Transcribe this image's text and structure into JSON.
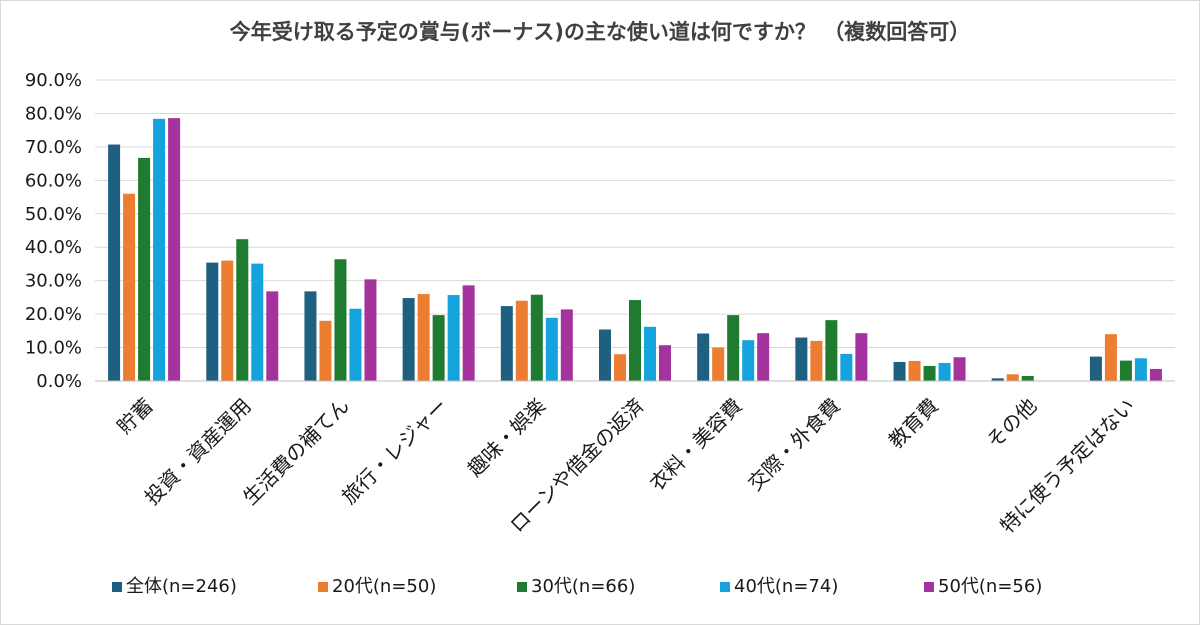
{
  "chart_data": {
    "type": "bar",
    "title": "今年受け取る予定の賞与(ボーナス)の主な使い道は何ですか？ （複数回答可）",
    "xlabel": "",
    "ylabel": "",
    "ylim": [
      0,
      90
    ],
    "yticks": [
      "0.0%",
      "10.0%",
      "20.0%",
      "30.0%",
      "40.0%",
      "50.0%",
      "60.0%",
      "70.0%",
      "80.0%",
      "90.0%"
    ],
    "grid": true,
    "legend_position": "bottom",
    "categories": [
      "貯蓄",
      "投資・資産運用",
      "生活費の補てん",
      "旅行・レジャー",
      "趣味・娯楽",
      "ローンや借金の返済",
      "衣料・美容費",
      "交際・外食費",
      "教育費",
      "その他",
      "特に使う予定はない"
    ],
    "series": [
      {
        "name": "全体(n=246)",
        "color": "#1f5f80",
        "values": [
          70.7,
          35.4,
          26.8,
          24.8,
          22.4,
          15.4,
          14.2,
          13.0,
          5.7,
          0.8,
          7.3
        ]
      },
      {
        "name": "20代(n=50)",
        "color": "#ed7d31",
        "values": [
          56.0,
          36.0,
          18.0,
          26.0,
          24.0,
          8.0,
          10.0,
          12.0,
          6.0,
          2.0,
          14.0
        ]
      },
      {
        "name": "30代(n=66)",
        "color": "#1e7b30",
        "values": [
          66.7,
          42.4,
          36.4,
          19.7,
          25.8,
          24.2,
          19.7,
          18.2,
          4.5,
          1.5,
          6.1
        ]
      },
      {
        "name": "40代(n=74)",
        "color": "#14a3dc",
        "values": [
          78.4,
          35.1,
          21.6,
          25.7,
          18.9,
          16.2,
          12.2,
          8.1,
          5.4,
          0.0,
          6.8
        ]
      },
      {
        "name": "50代(n=56)",
        "color": "#a5339e",
        "values": [
          78.6,
          26.8,
          30.4,
          28.6,
          21.4,
          10.7,
          14.3,
          14.3,
          7.1,
          0.0,
          3.6
        ]
      }
    ]
  }
}
